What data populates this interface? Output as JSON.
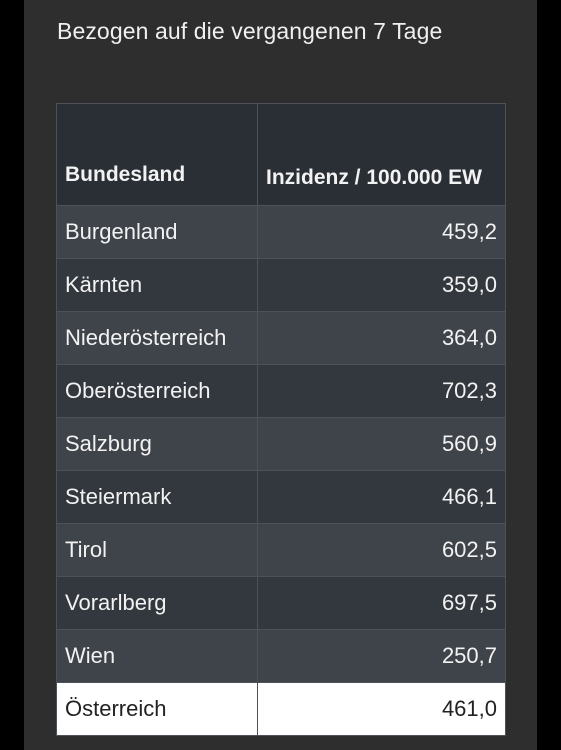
{
  "subtitle": "Bezogen auf die vergangenen 7 Tage",
  "table": {
    "headers": [
      "Bundesland",
      "Inzidenz / 100.000 EW"
    ],
    "rows": [
      {
        "region": "Burgenland",
        "value": "459,2"
      },
      {
        "region": "Kärnten",
        "value": "359,0"
      },
      {
        "region": "Niederösterreich",
        "value": "364,0"
      },
      {
        "region": "Oberösterreich",
        "value": "702,3"
      },
      {
        "region": "Salzburg",
        "value": "560,9"
      },
      {
        "region": "Steiermark",
        "value": "466,1"
      },
      {
        "region": "Tirol",
        "value": "602,5"
      },
      {
        "region": "Vorarlberg",
        "value": "697,5"
      },
      {
        "region": "Wien",
        "value": "250,7"
      }
    ],
    "total": {
      "region": "Österreich",
      "value": "461,0"
    }
  },
  "colors": {
    "background": "#000000",
    "card": "#2e2e2e",
    "header_bg": "#2a2f36",
    "row_odd": "#3f444b",
    "row_even": "#33383f",
    "total_bg": "#ffffff"
  }
}
